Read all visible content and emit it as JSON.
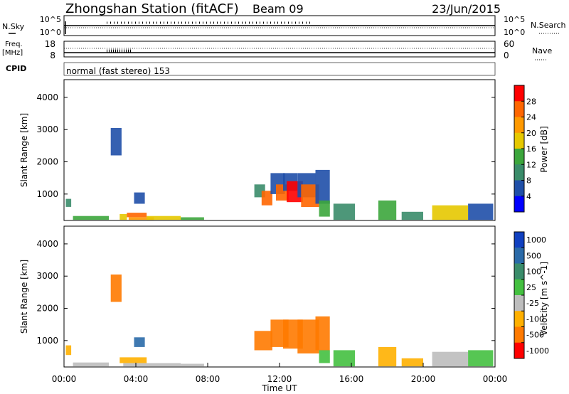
{
  "header": {
    "station": "Zhongshan Station (fitACF)",
    "beam": "Beam 09",
    "date": "23/Jun/2015"
  },
  "nsky_panel": {
    "left_label": "N.Sky",
    "right_label": "N.Search",
    "left_ticks": [
      "10^5",
      "10^0"
    ],
    "right_ticks": [
      "10^5",
      "10^0"
    ]
  },
  "freq_panel": {
    "left_label_1": "Freq.",
    "left_label_2": "[MHz]",
    "right_label": "Nave",
    "left_ticks": [
      "18",
      "8"
    ],
    "right_ticks": [
      "60",
      "0"
    ]
  },
  "cpid": {
    "label": "CPID",
    "text": "normal (fast stereo) 153"
  },
  "chart_data": [
    {
      "type": "heatmap",
      "name": "power",
      "ylabel": "Slant Range [km]",
      "ylim": [
        180,
        4550
      ],
      "xlim": [
        0,
        24
      ],
      "y_ticks": [
        1000,
        2000,
        3000,
        4000
      ],
      "colorbar_label": "Power [dB]",
      "colorbar_ticks": [
        "4",
        "8",
        "12",
        "16",
        "20",
        "24",
        "28"
      ],
      "colors": [
        "#0000ff",
        "#1f4fa8",
        "#3a8c6a",
        "#3ca63c",
        "#e6c800",
        "#ff9900",
        "#ff6600",
        "#ff0000"
      ],
      "patches": [
        {
          "t0": 0.1,
          "t1": 0.4,
          "r0": 600,
          "r1": 850,
          "c": 2
        },
        {
          "t0": 0.5,
          "t1": 2.5,
          "r0": 200,
          "r1": 320,
          "c": 3
        },
        {
          "t0": 3.1,
          "t1": 3.5,
          "r0": 200,
          "r1": 380,
          "c": 4
        },
        {
          "t0": 3.5,
          "t1": 4.6,
          "r0": 280,
          "r1": 420,
          "c": 6
        },
        {
          "t0": 3.6,
          "t1": 5.0,
          "r0": 200,
          "r1": 280,
          "c": 5
        },
        {
          "t0": 4.6,
          "t1": 6.5,
          "r0": 200,
          "r1": 320,
          "c": 4
        },
        {
          "t0": 6.5,
          "t1": 7.8,
          "r0": 200,
          "r1": 280,
          "c": 3
        },
        {
          "t0": 2.6,
          "t1": 3.2,
          "r0": 2200,
          "r1": 3050,
          "c": 1
        },
        {
          "t0": 3.9,
          "t1": 4.5,
          "r0": 700,
          "r1": 1050,
          "c": 1
        },
        {
          "t0": 10.6,
          "t1": 11.2,
          "r0": 900,
          "r1": 1300,
          "c": 2
        },
        {
          "t0": 11.0,
          "t1": 11.6,
          "r0": 650,
          "r1": 1100,
          "c": 6
        },
        {
          "t0": 11.5,
          "t1": 12.3,
          "r0": 1000,
          "r1": 1650,
          "c": 1
        },
        {
          "t0": 11.8,
          "t1": 12.5,
          "r0": 800,
          "r1": 1300,
          "c": 6
        },
        {
          "t0": 12.2,
          "t1": 13.0,
          "r0": 1100,
          "r1": 1650,
          "c": 1
        },
        {
          "t0": 12.4,
          "t1": 13.3,
          "r0": 750,
          "r1": 1400,
          "c": 7
        },
        {
          "t0": 13.0,
          "t1": 14.0,
          "r0": 900,
          "r1": 1650,
          "c": 1
        },
        {
          "t0": 13.2,
          "t1": 14.2,
          "r0": 600,
          "r1": 1300,
          "c": 6
        },
        {
          "t0": 14.0,
          "t1": 14.8,
          "r0": 700,
          "r1": 1750,
          "c": 1
        },
        {
          "t0": 14.2,
          "t1": 14.8,
          "r0": 300,
          "r1": 800,
          "c": 3
        },
        {
          "t0": 15.0,
          "t1": 16.2,
          "r0": 200,
          "r1": 700,
          "c": 2
        },
        {
          "t0": 17.5,
          "t1": 18.5,
          "r0": 200,
          "r1": 800,
          "c": 3
        },
        {
          "t0": 18.8,
          "t1": 20.0,
          "r0": 200,
          "r1": 450,
          "c": 2
        },
        {
          "t0": 20.5,
          "t1": 22.5,
          "r0": 200,
          "r1": 650,
          "c": 4
        },
        {
          "t0": 22.5,
          "t1": 23.9,
          "r0": 200,
          "r1": 700,
          "c": 1
        }
      ]
    },
    {
      "type": "heatmap",
      "name": "velocity",
      "ylabel": "Slant Range [km]",
      "xlabel": "Time UT",
      "ylim": [
        180,
        4550
      ],
      "xlim": [
        0,
        24
      ],
      "y_ticks": [
        1000,
        2000,
        3000,
        4000
      ],
      "x_ticks": [
        "00:00",
        "04:00",
        "08:00",
        "12:00",
        "16:00",
        "20:00",
        "00:00"
      ],
      "x_tick_values": [
        0,
        4,
        8,
        12,
        16,
        20,
        24
      ],
      "colorbar_label": "Velocity [m s^-1]",
      "colorbar_ticks": [
        "1000",
        "500",
        "100",
        "25",
        "-25",
        "-100",
        "-500",
        "-1000"
      ],
      "colors": [
        "#1040c0",
        "#2a6aa8",
        "#3a8c6a",
        "#44c040",
        "#bdbdbd",
        "#ffb000",
        "#ff7a00",
        "#ff0000"
      ],
      "patches": [
        {
          "t0": 0.1,
          "t1": 0.4,
          "r0": 550,
          "r1": 850,
          "c": 5
        },
        {
          "t0": 0.5,
          "t1": 2.5,
          "r0": 200,
          "r1": 320,
          "c": 4
        },
        {
          "t0": 3.1,
          "t1": 4.6,
          "r0": 300,
          "r1": 480,
          "c": 5
        },
        {
          "t0": 3.3,
          "t1": 6.5,
          "r0": 200,
          "r1": 300,
          "c": 4
        },
        {
          "t0": 6.5,
          "t1": 7.8,
          "r0": 200,
          "r1": 280,
          "c": 4
        },
        {
          "t0": 2.6,
          "t1": 3.2,
          "r0": 2200,
          "r1": 3050,
          "c": 6
        },
        {
          "t0": 3.9,
          "t1": 4.5,
          "r0": 800,
          "r1": 1100,
          "c": 1
        },
        {
          "t0": 10.6,
          "t1": 11.6,
          "r0": 700,
          "r1": 1300,
          "c": 6
        },
        {
          "t0": 11.5,
          "t1": 12.5,
          "r0": 800,
          "r1": 1650,
          "c": 6
        },
        {
          "t0": 12.2,
          "t1": 13.3,
          "r0": 750,
          "r1": 1650,
          "c": 6
        },
        {
          "t0": 13.0,
          "t1": 14.2,
          "r0": 600,
          "r1": 1650,
          "c": 6
        },
        {
          "t0": 14.0,
          "t1": 14.8,
          "r0": 700,
          "r1": 1750,
          "c": 6
        },
        {
          "t0": 14.2,
          "t1": 14.8,
          "r0": 300,
          "r1": 700,
          "c": 3
        },
        {
          "t0": 15.0,
          "t1": 16.2,
          "r0": 200,
          "r1": 700,
          "c": 3
        },
        {
          "t0": 17.5,
          "t1": 18.5,
          "r0": 200,
          "r1": 800,
          "c": 5
        },
        {
          "t0": 18.8,
          "t1": 20.0,
          "r0": 200,
          "r1": 450,
          "c": 5
        },
        {
          "t0": 20.5,
          "t1": 22.5,
          "r0": 200,
          "r1": 650,
          "c": 4
        },
        {
          "t0": 22.5,
          "t1": 23.9,
          "r0": 200,
          "r1": 700,
          "c": 3
        }
      ]
    }
  ]
}
